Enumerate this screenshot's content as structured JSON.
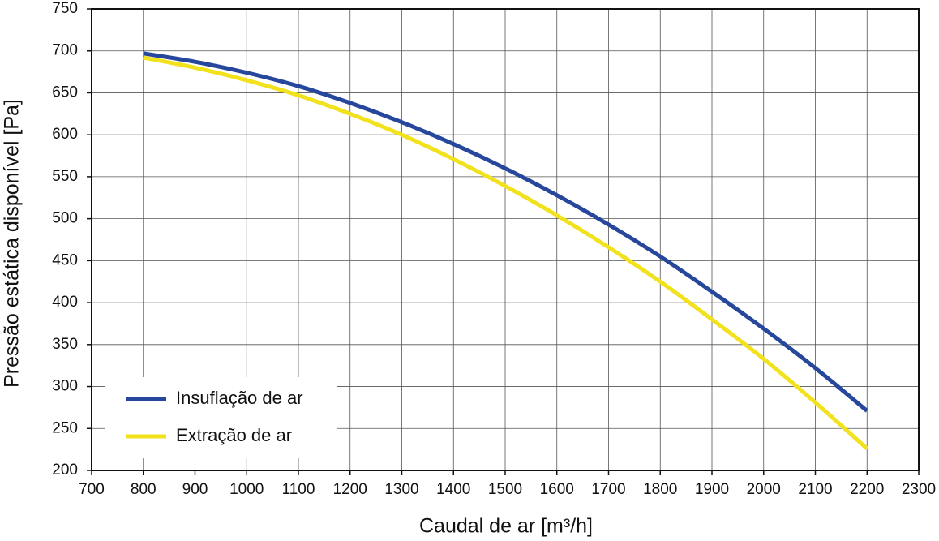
{
  "chart_data": {
    "type": "line",
    "x_label": "Caudal de ar [m³/h]",
    "y_label": "Pressão estática disponível [Pa]",
    "x": [
      800,
      900,
      1000,
      1100,
      1200,
      1300,
      1400,
      1500,
      1600,
      1700,
      1800,
      1900,
      2000,
      2100,
      2200
    ],
    "series": [
      {
        "name": "Insuflação de ar",
        "color": "#26479b",
        "values": [
          697,
          687,
          674,
          658,
          638,
          615,
          589,
          560,
          528,
          493,
          455,
          413,
          369,
          322,
          271
        ]
      },
      {
        "name": "Extração de ar",
        "color": "#f2e21d",
        "values": [
          692,
          680,
          665,
          647,
          625,
          600,
          571,
          539,
          504,
          466,
          425,
          380,
          333,
          281,
          226
        ]
      }
    ],
    "xlim": [
      700,
      2300
    ],
    "xticks": [
      700,
      800,
      900,
      1000,
      1100,
      1200,
      1300,
      1400,
      1500,
      1600,
      1700,
      1800,
      1900,
      2000,
      2100,
      2200,
      2300
    ],
    "ylim": [
      200,
      750
    ],
    "yticks": [
      200,
      250,
      300,
      350,
      400,
      450,
      500,
      550,
      600,
      650,
      700,
      750
    ],
    "grid": true,
    "legend": "lower left"
  }
}
